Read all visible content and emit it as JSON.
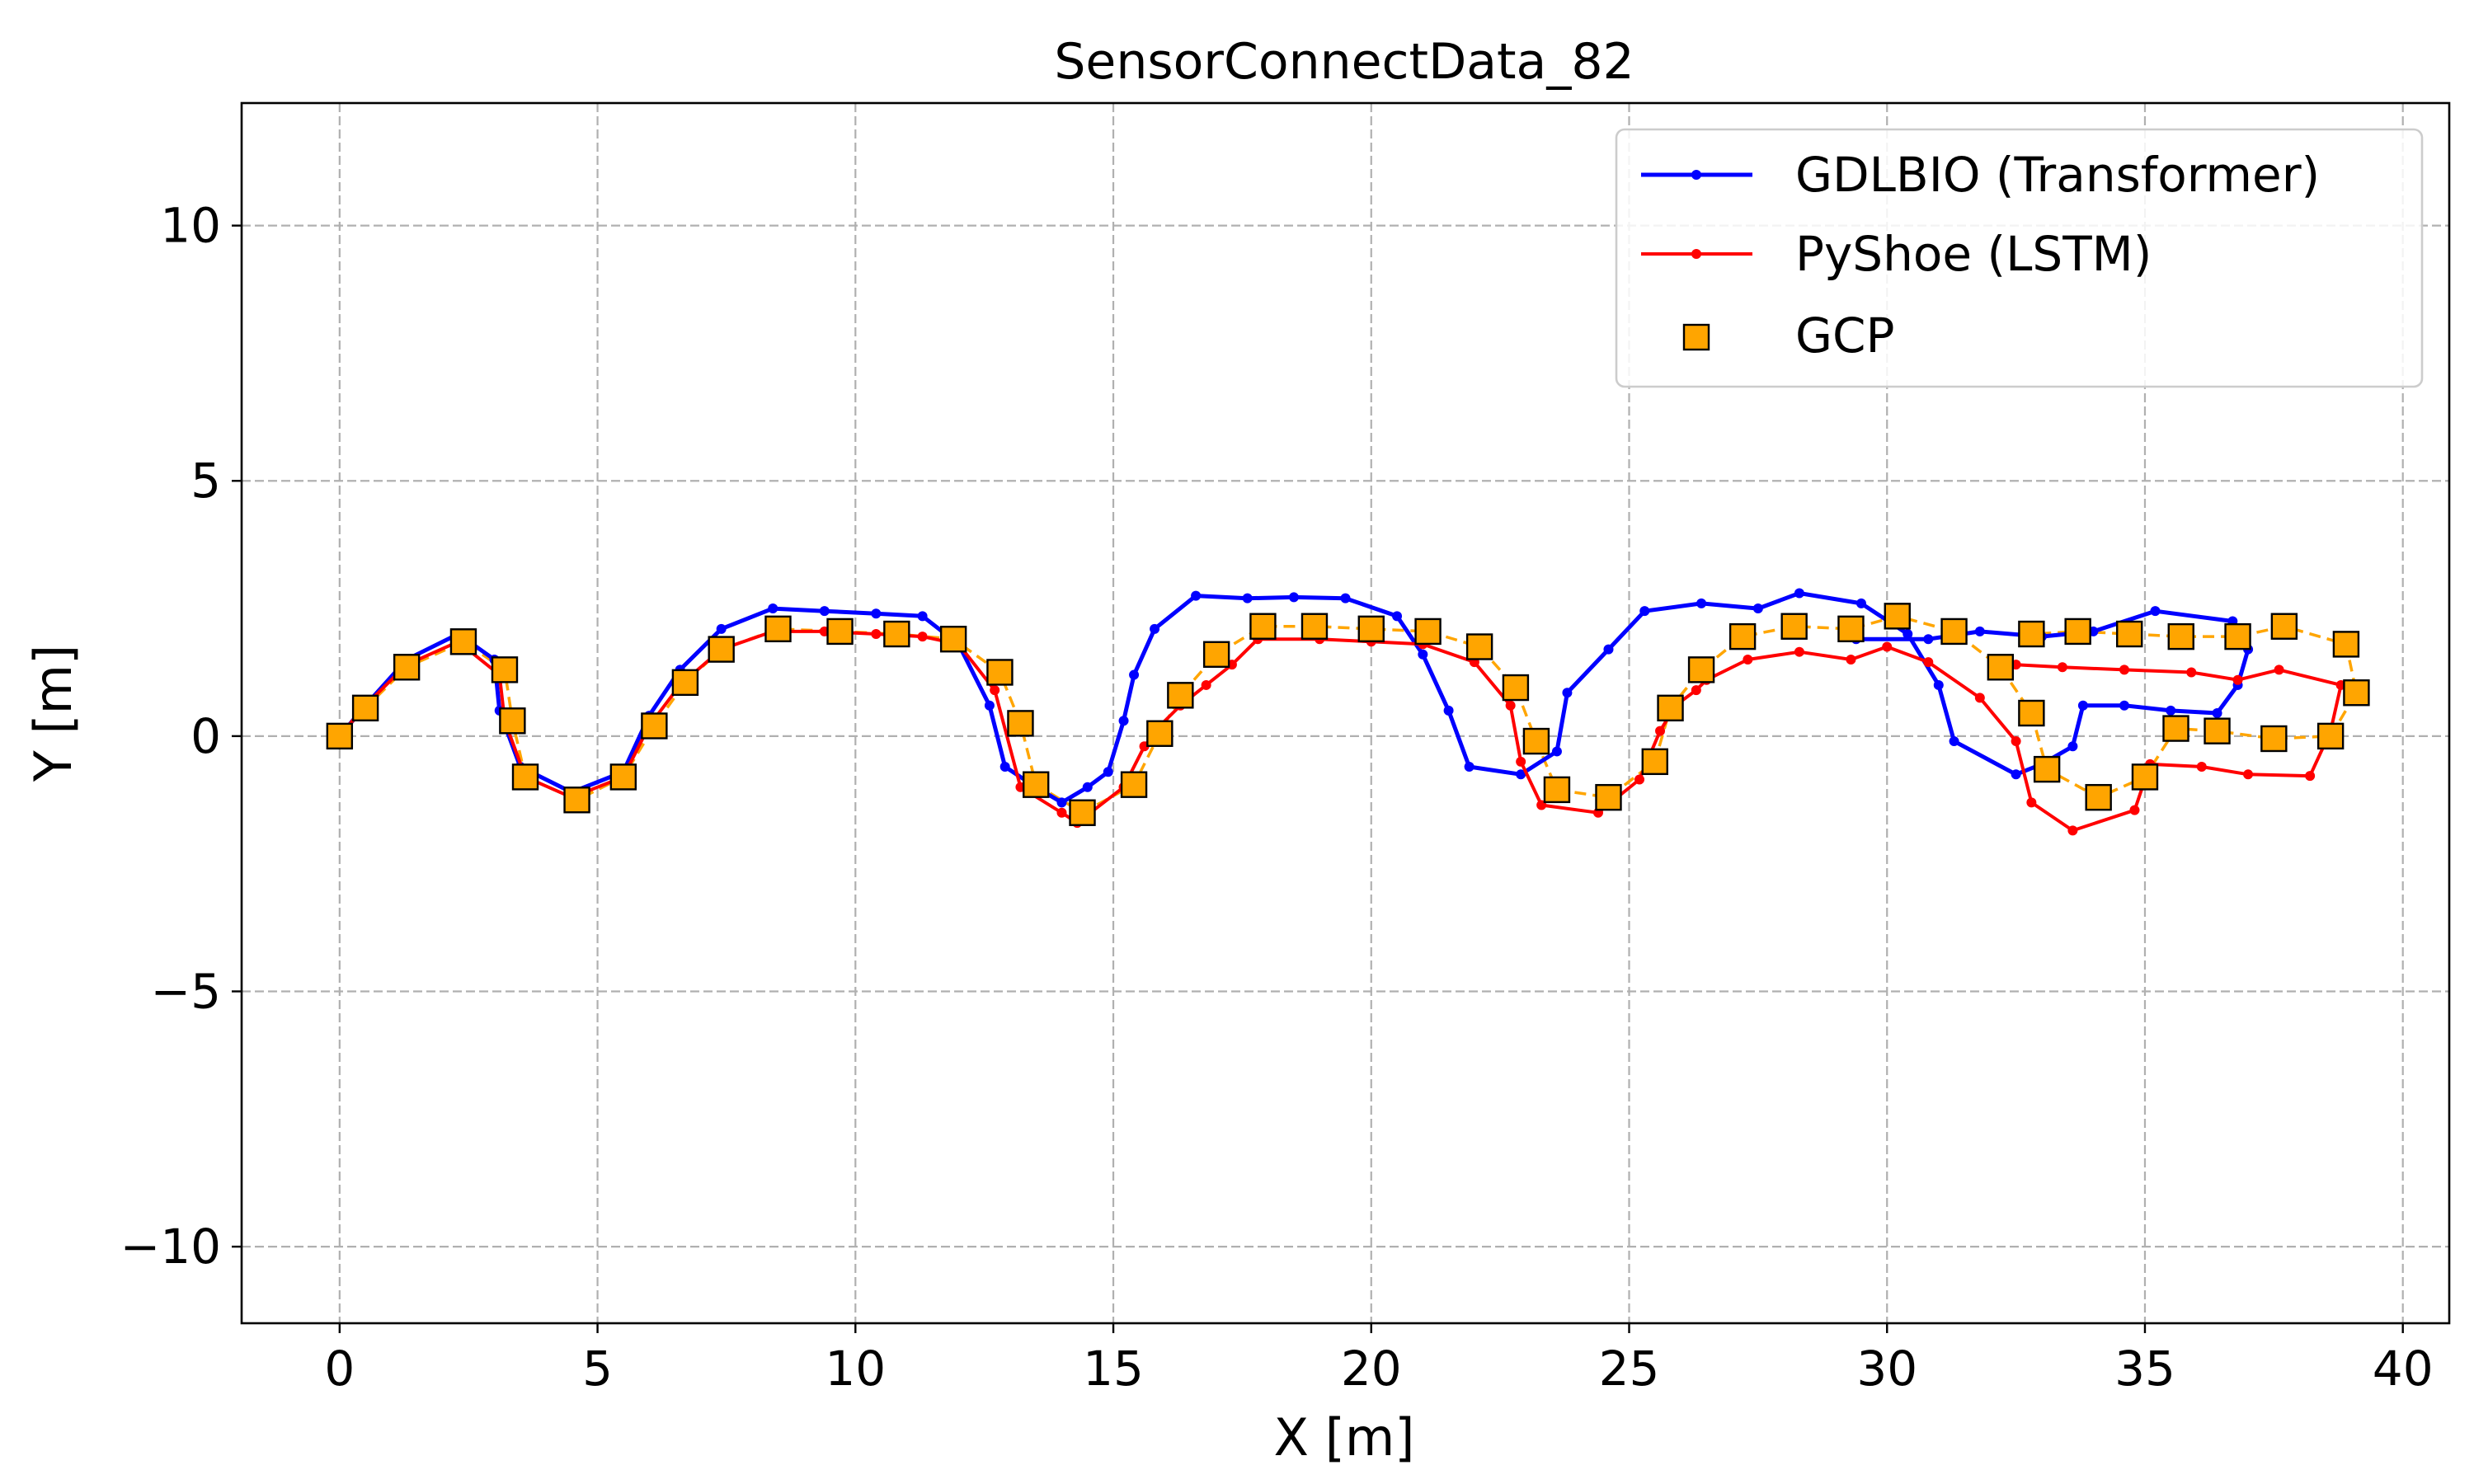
{
  "chart_data": {
    "type": "line",
    "title": "SensorConnectData_82",
    "xlabel": "X [m]",
    "ylabel": "Y [m]",
    "xlim": [
      -1.9,
      40.9
    ],
    "ylim": [
      -11.5,
      12.4
    ],
    "xticks": [
      0,
      5,
      10,
      15,
      20,
      25,
      30,
      35,
      40
    ],
    "xtick_labels": [
      "0",
      "5",
      "10",
      "15",
      "20",
      "25",
      "30",
      "35",
      "40"
    ],
    "yticks": [
      -10,
      -5,
      0,
      5,
      10
    ],
    "ytick_labels": [
      "−10",
      "−5",
      "0",
      "5",
      "10"
    ],
    "grid": true,
    "legend_position": "top-right",
    "series": [
      {
        "name": "GDLBIO (Transformer)",
        "color": "#0000ff",
        "style": "solid line with dot markers",
        "points": [
          [
            0.0,
            0.0
          ],
          [
            0.5,
            0.6
          ],
          [
            1.3,
            1.5
          ],
          [
            2.3,
            2.0
          ],
          [
            3.0,
            1.5
          ],
          [
            3.1,
            0.5
          ],
          [
            3.5,
            -0.6
          ],
          [
            4.5,
            -1.1
          ],
          [
            5.5,
            -0.7
          ],
          [
            6.0,
            0.4
          ],
          [
            6.6,
            1.3
          ],
          [
            7.4,
            2.1
          ],
          [
            8.4,
            2.5
          ],
          [
            9.4,
            2.45
          ],
          [
            10.4,
            2.4
          ],
          [
            11.3,
            2.35
          ],
          [
            12.0,
            1.8
          ],
          [
            12.6,
            0.6
          ],
          [
            12.9,
            -0.6
          ],
          [
            13.5,
            -1.0
          ],
          [
            14.0,
            -1.3
          ],
          [
            14.5,
            -1.0
          ],
          [
            14.9,
            -0.7
          ],
          [
            15.2,
            0.3
          ],
          [
            15.4,
            1.2
          ],
          [
            15.8,
            2.1
          ],
          [
            16.6,
            2.75
          ],
          [
            17.6,
            2.7
          ],
          [
            18.5,
            2.72
          ],
          [
            19.5,
            2.7
          ],
          [
            20.5,
            2.35
          ],
          [
            21.0,
            1.6
          ],
          [
            21.5,
            0.5
          ],
          [
            21.9,
            -0.6
          ],
          [
            22.9,
            -0.75
          ],
          [
            23.6,
            -0.3
          ],
          [
            23.8,
            0.85
          ],
          [
            24.6,
            1.7
          ],
          [
            25.3,
            2.45
          ],
          [
            26.4,
            2.6
          ],
          [
            27.5,
            2.5
          ],
          [
            28.3,
            2.8
          ],
          [
            29.5,
            2.6
          ],
          [
            30.4,
            2.0
          ],
          [
            31.0,
            1.0
          ],
          [
            31.3,
            -0.1
          ],
          [
            32.5,
            -0.75
          ],
          [
            33.0,
            -0.55
          ],
          [
            33.6,
            -0.2
          ],
          [
            33.8,
            0.6
          ],
          [
            34.6,
            0.6
          ],
          [
            35.5,
            0.5
          ],
          [
            36.4,
            0.45
          ],
          [
            36.8,
            1.0
          ],
          [
            37.0,
            1.7
          ],
          [
            36.7,
            2.25
          ],
          [
            35.2,
            2.45
          ],
          [
            34.0,
            2.05
          ],
          [
            33.0,
            1.95
          ],
          [
            31.8,
            2.05
          ],
          [
            30.8,
            1.9
          ],
          [
            29.4,
            1.9
          ]
        ]
      },
      {
        "name": "PyShoe (LSTM)",
        "color": "#ff0000",
        "style": "solid line with dot markers",
        "points": [
          [
            0.0,
            0.0
          ],
          [
            0.5,
            0.6
          ],
          [
            1.3,
            1.4
          ],
          [
            2.3,
            1.85
          ],
          [
            3.1,
            1.2
          ],
          [
            3.2,
            0.3
          ],
          [
            3.6,
            -0.8
          ],
          [
            4.5,
            -1.2
          ],
          [
            5.5,
            -0.8
          ],
          [
            6.0,
            0.2
          ],
          [
            6.6,
            1.0
          ],
          [
            7.4,
            1.7
          ],
          [
            8.4,
            2.05
          ],
          [
            9.4,
            2.05
          ],
          [
            10.4,
            2.0
          ],
          [
            11.3,
            1.95
          ],
          [
            12.0,
            1.8
          ],
          [
            12.7,
            0.9
          ],
          [
            13.2,
            -1.0
          ],
          [
            14.0,
            -1.5
          ],
          [
            14.3,
            -1.7
          ],
          [
            15.2,
            -1.0
          ],
          [
            15.6,
            -0.2
          ],
          [
            15.9,
            0.2
          ],
          [
            16.3,
            0.6
          ],
          [
            16.8,
            1.0
          ],
          [
            17.3,
            1.4
          ],
          [
            17.8,
            1.9
          ],
          [
            19.0,
            1.9
          ],
          [
            20.0,
            1.85
          ],
          [
            21.0,
            1.8
          ],
          [
            22.0,
            1.45
          ],
          [
            22.7,
            0.6
          ],
          [
            22.9,
            -0.5
          ],
          [
            23.3,
            -1.35
          ],
          [
            24.4,
            -1.5
          ],
          [
            25.2,
            -0.85
          ],
          [
            25.6,
            0.1
          ],
          [
            25.9,
            0.6
          ],
          [
            26.3,
            0.9
          ],
          [
            26.5,
            1.1
          ],
          [
            27.3,
            1.5
          ],
          [
            28.3,
            1.65
          ],
          [
            29.3,
            1.5
          ],
          [
            30.0,
            1.75
          ],
          [
            30.8,
            1.45
          ],
          [
            31.8,
            0.75
          ],
          [
            32.5,
            -0.1
          ],
          [
            32.8,
            -1.3
          ],
          [
            33.6,
            -1.85
          ],
          [
            34.8,
            -1.45
          ],
          [
            35.1,
            -0.55
          ],
          [
            36.1,
            -0.6
          ],
          [
            37.0,
            -0.75
          ],
          [
            38.2,
            -0.78
          ],
          [
            38.6,
            0.1
          ],
          [
            38.8,
            1.0
          ],
          [
            37.6,
            1.3
          ],
          [
            36.8,
            1.1
          ],
          [
            35.9,
            1.25
          ],
          [
            34.6,
            1.3
          ],
          [
            33.4,
            1.35
          ],
          [
            32.5,
            1.4
          ]
        ]
      },
      {
        "name": "GCP",
        "color": "#ffa500",
        "edge_color": "#000000",
        "style": "square markers with dashed orange line",
        "points": [
          [
            0.0,
            0.0
          ],
          [
            0.5,
            0.55
          ],
          [
            1.3,
            1.35
          ],
          [
            2.4,
            1.85
          ],
          [
            3.2,
            1.3
          ],
          [
            3.35,
            0.3
          ],
          [
            3.6,
            -0.8
          ],
          [
            4.6,
            -1.25
          ],
          [
            5.5,
            -0.8
          ],
          [
            6.1,
            0.2
          ],
          [
            6.7,
            1.05
          ],
          [
            7.4,
            1.7
          ],
          [
            8.5,
            2.1
          ],
          [
            9.7,
            2.05
          ],
          [
            10.8,
            2.0
          ],
          [
            11.9,
            1.9
          ],
          [
            12.8,
            1.25
          ],
          [
            13.2,
            0.25
          ],
          [
            13.5,
            -0.95
          ],
          [
            14.4,
            -1.5
          ],
          [
            15.4,
            -0.95
          ],
          [
            15.9,
            0.05
          ],
          [
            16.3,
            0.8
          ],
          [
            17.0,
            1.6
          ],
          [
            17.9,
            2.15
          ],
          [
            18.9,
            2.15
          ],
          [
            20.0,
            2.1
          ],
          [
            21.1,
            2.05
          ],
          [
            22.1,
            1.75
          ],
          [
            22.8,
            0.95
          ],
          [
            23.2,
            -0.1
          ],
          [
            23.6,
            -1.05
          ],
          [
            24.6,
            -1.2
          ],
          [
            25.5,
            -0.5
          ],
          [
            25.8,
            0.55
          ],
          [
            26.4,
            1.3
          ],
          [
            27.2,
            1.95
          ],
          [
            28.2,
            2.15
          ],
          [
            29.3,
            2.1
          ],
          [
            30.2,
            2.35
          ],
          [
            31.3,
            2.05
          ],
          [
            32.2,
            1.35
          ],
          [
            32.8,
            0.45
          ],
          [
            33.1,
            -0.65
          ],
          [
            34.1,
            -1.2
          ],
          [
            35.0,
            -0.8
          ],
          [
            35.6,
            0.15
          ],
          [
            36.4,
            0.1
          ],
          [
            37.5,
            -0.05
          ],
          [
            38.6,
            0.0
          ],
          [
            39.1,
            0.85
          ],
          [
            38.9,
            1.8
          ],
          [
            37.7,
            2.15
          ],
          [
            36.8,
            1.95
          ],
          [
            35.7,
            1.95
          ],
          [
            34.7,
            2.0
          ],
          [
            33.7,
            2.05
          ],
          [
            32.8,
            2.0
          ]
        ]
      }
    ]
  }
}
